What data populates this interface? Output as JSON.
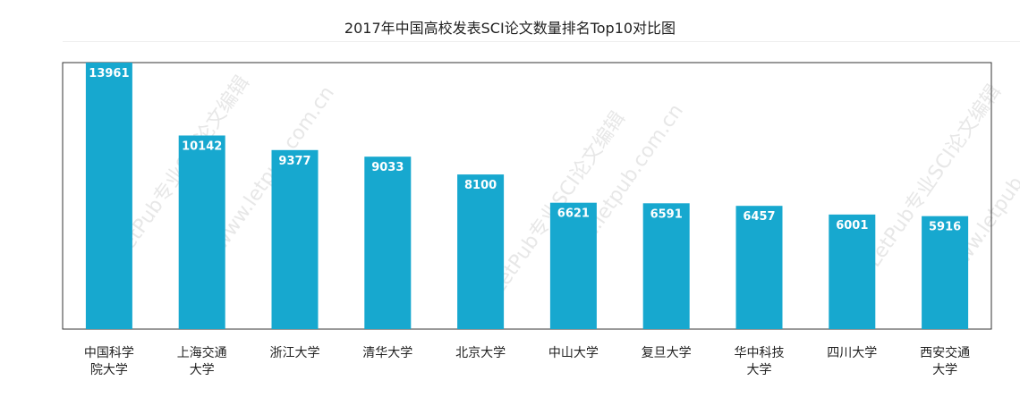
{
  "chart_data": {
    "type": "bar",
    "title": "2017年中国高校发表SCI论文数量排名Top10对比图",
    "categories": [
      [
        "中国科学",
        "院大学"
      ],
      [
        "上海交通",
        "大学"
      ],
      [
        "浙江大学"
      ],
      [
        "清华大学"
      ],
      [
        "北京大学"
      ],
      [
        "中山大学"
      ],
      [
        "复旦大学"
      ],
      [
        "华中科技",
        "大学"
      ],
      [
        "四川大学"
      ],
      [
        "西安交通",
        "大学"
      ]
    ],
    "values": [
      13961,
      10142,
      9377,
      9033,
      8100,
      6621,
      6591,
      6457,
      6001,
      5916
    ],
    "ylim": [
      0,
      13961
    ],
    "grid": false,
    "colors": {
      "bar": "#17a8cf",
      "bar_label": "#ffffff"
    }
  },
  "watermarks": [
    "LetPub专业SCI论文编辑",
    "www.letpub.com.cn",
    "LetPub专业SCI论文编辑",
    "www.letpub.com.cn",
    "LetPub专业SCI论文编辑",
    "www.letpub.com.cn"
  ]
}
